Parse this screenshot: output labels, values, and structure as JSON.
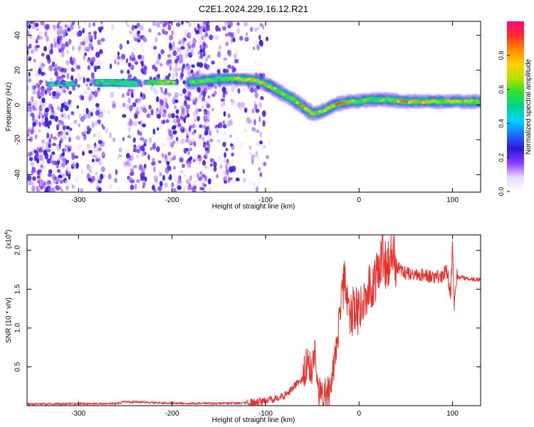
{
  "title": "C2E1.2024.229.16.12.R21",
  "colors": {
    "background": "#ffffff",
    "axis": "#000000",
    "snr_line": "#e8312a",
    "colorbar_stops": [
      "#ffffff",
      "#e9d8ff",
      "#8b3cff",
      "#2a18d8",
      "#1e6cff",
      "#00d4ff",
      "#00d48a",
      "#2ee02e",
      "#b8e000",
      "#ffd000",
      "#ff8a00",
      "#ff2a2a",
      "#ff0a78"
    ]
  },
  "chart_data": [
    {
      "type": "heatmap",
      "name": "spectrogram",
      "xlabel": "Height of straight line (km)",
      "ylabel": "Frequency (Hz)",
      "xlim": [
        -355,
        130
      ],
      "ylim": [
        -50,
        48
      ],
      "xticks": [
        -300,
        -200,
        -100,
        0,
        100
      ],
      "xtick_labels": [
        "-300",
        "-200",
        "-100",
        "0",
        "100"
      ],
      "yticks": [
        -40,
        -20,
        0,
        20,
        40
      ],
      "ytick_labels": [
        "-40",
        "-20",
        "0",
        "20",
        "40"
      ],
      "colorbar": {
        "label": "Normalized spectral amplitude",
        "range": [
          0,
          1
        ],
        "ticks": [
          0.0,
          0.2,
          0.4,
          0.6,
          0.8
        ],
        "tick_labels": [
          "0.0",
          "0.2",
          "0.4",
          "0.6",
          "0.8"
        ]
      },
      "ridge": {
        "x": [
          -330,
          -300,
          -280,
          -260,
          -240,
          -220,
          -200,
          -180,
          -150,
          -130,
          -110,
          -100,
          -90,
          -80,
          -70,
          -60,
          -50,
          -40,
          -30,
          -20,
          -10,
          0,
          10,
          20,
          30,
          50,
          80,
          100,
          130
        ],
        "freq": [
          12,
          12,
          13,
          13,
          12,
          13,
          13,
          13,
          15,
          15,
          14,
          12,
          9,
          6,
          3,
          -1,
          -5,
          -4,
          -1,
          1,
          2,
          2,
          3,
          3,
          3,
          2,
          2,
          2,
          2
        ],
        "amplitude": [
          0.4,
          0.45,
          0.5,
          0.5,
          0.5,
          0.55,
          0.7,
          0.6,
          0.55,
          0.75,
          0.85,
          0.75,
          0.7,
          0.75,
          0.7,
          0.85,
          0.75,
          0.7,
          0.75,
          0.85,
          0.8,
          0.7,
          0.6,
          0.6,
          0.6,
          0.85,
          0.7,
          0.8,
          0.6
        ]
      }
    },
    {
      "type": "line",
      "name": "snr",
      "xlabel": "Height of straight line (km)",
      "ylabel": "SNR (10 * v/v)",
      "y_multiplier": "(x10",
      "y_multiplier_exp": "4",
      "y_multiplier_close": ")",
      "xlim": [
        -355,
        130
      ],
      "ylim": [
        0,
        22000
      ],
      "xticks": [
        -300,
        -200,
        -100,
        0,
        100
      ],
      "xtick_labels": [
        "-300",
        "-200",
        "-100",
        "0",
        "100"
      ],
      "yticks": [
        5000,
        10000,
        15000,
        20000
      ],
      "ytick_labels": [
        "0.5",
        "1.0",
        "1.5",
        "2.0"
      ],
      "series": [
        {
          "x": [
            -355,
            -300,
            -260,
            -250,
            -200,
            -150,
            -120,
            -110,
            -100,
            -90,
            -80,
            -75,
            -70,
            -60,
            -55,
            -50,
            -47,
            -45,
            -40,
            -35,
            -30,
            -25,
            -20,
            -15,
            -10,
            -5,
            0,
            5,
            10,
            15,
            20,
            25,
            30,
            35,
            40,
            45,
            50,
            60,
            70,
            80,
            90,
            95,
            98,
            100,
            102,
            105,
            110,
            120,
            130
          ],
          "y": [
            200,
            250,
            250,
            500,
            300,
            300,
            350,
            450,
            600,
            900,
            1300,
            1800,
            2500,
            3500,
            6000,
            4000,
            8000,
            2000,
            1200,
            1500,
            2500,
            7000,
            12000,
            16000,
            11000,
            13000,
            12000,
            14000,
            15000,
            16000,
            17000,
            19500,
            17500,
            20500,
            18000,
            17500,
            17000,
            17000,
            16800,
            16600,
            16500,
            16800,
            14000,
            22000,
            12500,
            16500,
            16500,
            16300,
            16200
          ]
        }
      ]
    }
  ]
}
